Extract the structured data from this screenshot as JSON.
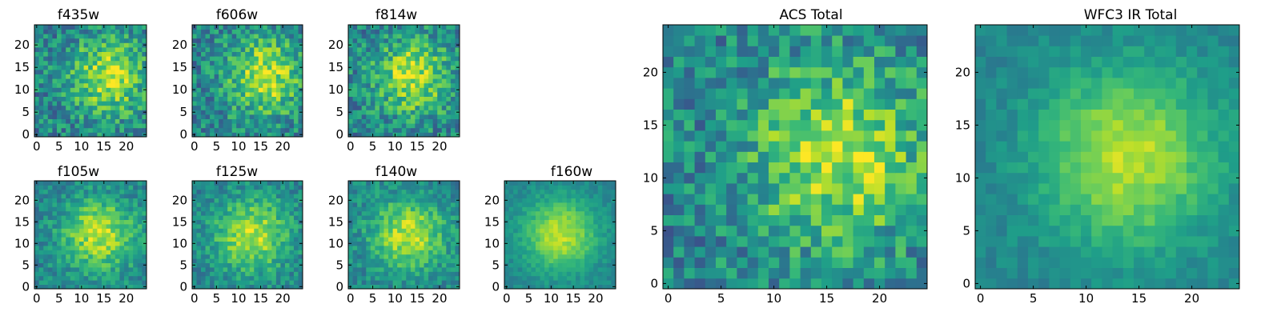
{
  "chart_data": [
    {
      "type": "heatmap",
      "title": "f435w",
      "colormap": "viridis",
      "x_ticks": [
        0,
        5,
        10,
        15,
        20
      ],
      "y_ticks": [
        0,
        5,
        10,
        15,
        20
      ],
      "xlim": [
        0,
        24
      ],
      "ylim": [
        0,
        24
      ],
      "grid": false,
      "peak_center": [
        16,
        13
      ],
      "noise": "high"
    },
    {
      "type": "heatmap",
      "title": "f606w",
      "colormap": "viridis",
      "x_ticks": [
        0,
        5,
        10,
        15,
        20
      ],
      "y_ticks": [
        0,
        5,
        10,
        15,
        20
      ],
      "xlim": [
        0,
        24
      ],
      "ylim": [
        0,
        24
      ],
      "grid": false,
      "peak_center": [
        16,
        13
      ],
      "noise": "high"
    },
    {
      "type": "heatmap",
      "title": "f814w",
      "colormap": "viridis",
      "x_ticks": [
        0,
        5,
        10,
        15,
        20
      ],
      "y_ticks": [
        0,
        5,
        10,
        15,
        20
      ],
      "xlim": [
        0,
        24
      ],
      "ylim": [
        0,
        24
      ],
      "grid": false,
      "peak_center": [
        14,
        13
      ],
      "noise": "high"
    },
    {
      "type": "heatmap",
      "title": "f105w",
      "colormap": "viridis",
      "x_ticks": [
        0,
        5,
        10,
        15,
        20
      ],
      "y_ticks": [
        0,
        5,
        10,
        15,
        20
      ],
      "xlim": [
        0,
        24
      ],
      "ylim": [
        0,
        24
      ],
      "grid": false,
      "peak_center": [
        14,
        12
      ],
      "noise": "medium"
    },
    {
      "type": "heatmap",
      "title": "f125w",
      "colormap": "viridis",
      "x_ticks": [
        0,
        5,
        10,
        15,
        20
      ],
      "y_ticks": [
        0,
        5,
        10,
        15,
        20
      ],
      "xlim": [
        0,
        24
      ],
      "ylim": [
        0,
        24
      ],
      "grid": false,
      "peak_center": [
        13,
        12
      ],
      "noise": "medium"
    },
    {
      "type": "heatmap",
      "title": "f140w",
      "colormap": "viridis",
      "x_ticks": [
        0,
        5,
        10,
        15,
        20
      ],
      "y_ticks": [
        0,
        5,
        10,
        15,
        20
      ],
      "xlim": [
        0,
        24
      ],
      "ylim": [
        0,
        24
      ],
      "grid": false,
      "peak_center": [
        13,
        12
      ],
      "noise": "medium"
    },
    {
      "type": "heatmap",
      "title": "f160w",
      "colormap": "viridis",
      "x_ticks": [
        0,
        5,
        10,
        15,
        20
      ],
      "y_ticks": [
        0,
        5,
        10,
        15,
        20
      ],
      "xlim": [
        0,
        24
      ],
      "ylim": [
        0,
        24
      ],
      "grid": false,
      "peak_center": [
        12,
        12
      ],
      "noise": "low"
    },
    {
      "type": "heatmap",
      "title": "ACS Total",
      "colormap": "viridis",
      "x_ticks": [
        0,
        5,
        10,
        15,
        20
      ],
      "y_ticks": [
        0,
        5,
        10,
        15,
        20
      ],
      "xlim": [
        0,
        24
      ],
      "ylim": [
        0,
        24
      ],
      "grid": false,
      "peak_center": [
        16,
        12
      ],
      "noise": "high"
    },
    {
      "type": "heatmap",
      "title": "WFC3 IR Total",
      "colormap": "viridis",
      "x_ticks": [
        0,
        5,
        10,
        15,
        20
      ],
      "y_ticks": [
        0,
        5,
        10,
        15,
        20
      ],
      "xlim": [
        0,
        24
      ],
      "ylim": [
        0,
        24
      ],
      "grid": false,
      "peak_center": [
        14,
        12
      ],
      "noise": "low"
    }
  ]
}
